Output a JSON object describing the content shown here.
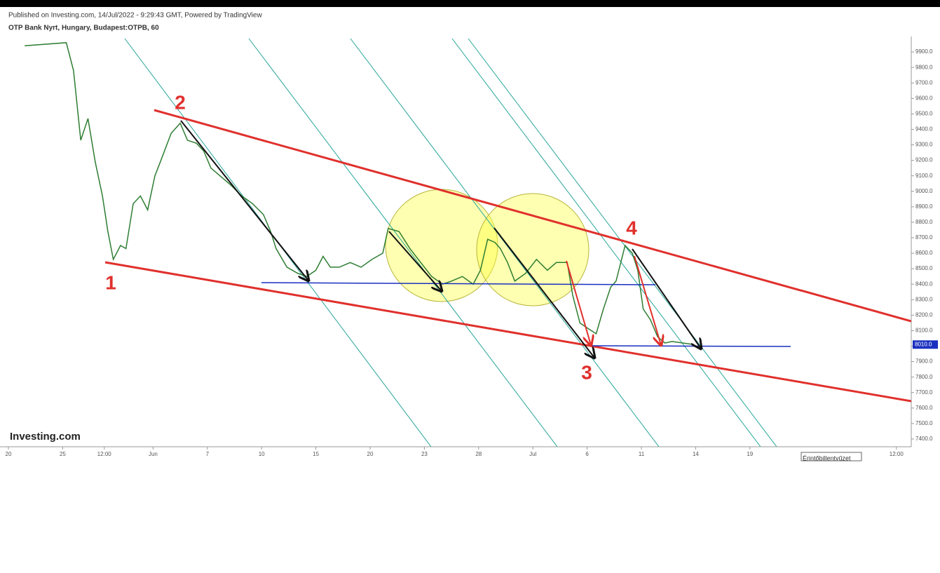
{
  "header": {
    "published": "Published on Investing.com, 14/Jul/2022 - 9:29:43 GMT, Powered by TradingView",
    "symbol": "OTP Bank Nyrt, Hungary, Budapest:OTPB, 60"
  },
  "logo": "Investing.com",
  "tooltip": "Érintőbillentyűzet",
  "annotations": [
    "1",
    "2",
    "3",
    "4"
  ],
  "chart_data": {
    "type": "line",
    "color": "#2e7d32",
    "series": [
      {
        "name": "OTPB",
        "color": "#2e7d32",
        "x": [
          0.9,
          3.2,
          3.6,
          4.0,
          4.4,
          4.8,
          5.2,
          5.5,
          5.8,
          6.2,
          6.5,
          6.9,
          7.3,
          7.7,
          8.1,
          8.4,
          9.0,
          9.5,
          9.9,
          10.4,
          10.8,
          11.2,
          11.7,
          12.3,
          12.9,
          13.5,
          14.1,
          14.5,
          14.8,
          15.4,
          16.0,
          16.5,
          17.0,
          17.4,
          17.8,
          18.3,
          18.9,
          19.5,
          20.1,
          20.7,
          21.0,
          21.6,
          22.2,
          22.8,
          23.4,
          24.0,
          24.5,
          25.1,
          25.7,
          26.1,
          26.5,
          26.9,
          27.2,
          27.6,
          28.0,
          28.6,
          29.2,
          29.8,
          30.3,
          30.9,
          31.2,
          31.6,
          32.1,
          32.5,
          32.9,
          33.3,
          33.6,
          34.1,
          34.5,
          34.8,
          35.1,
          35.5,
          35.9,
          36.3,
          36.7,
          37.3,
          37.9
        ],
        "values": [
          9940,
          9960,
          9780,
          9330,
          9470,
          9190,
          8970,
          8740,
          8560,
          8650,
          8630,
          8920,
          8970,
          8880,
          9100,
          9190,
          9375,
          9440,
          9330,
          9310,
          9260,
          9150,
          9100,
          9040,
          8970,
          8920,
          8850,
          8740,
          8630,
          8510,
          8470,
          8450,
          8490,
          8580,
          8510,
          8510,
          8540,
          8510,
          8560,
          8600,
          8760,
          8740,
          8630,
          8540,
          8450,
          8400,
          8420,
          8450,
          8400,
          8490,
          8690,
          8670,
          8630,
          8540,
          8420,
          8470,
          8560,
          8490,
          8540,
          8540,
          8330,
          8150,
          8110,
          8080,
          8240,
          8380,
          8420,
          8650,
          8600,
          8490,
          8240,
          8170,
          8060,
          8020,
          8030,
          8020,
          8010
        ]
      }
    ],
    "last_price": {
      "value": 8010,
      "label": "8010.0"
    },
    "xlim": [
      0,
      50
    ],
    "ylim": [
      7350,
      10000
    ],
    "xticks": [
      {
        "value": 0,
        "label": "20"
      },
      {
        "value": 3,
        "label": "25"
      },
      {
        "value": 5.3,
        "label": "12:00"
      },
      {
        "value": 8,
        "label": "Jun"
      },
      {
        "value": 11,
        "label": "7"
      },
      {
        "value": 14,
        "label": "10"
      },
      {
        "value": 17,
        "label": "15"
      },
      {
        "value": 20,
        "label": "20"
      },
      {
        "value": 23,
        "label": "23"
      },
      {
        "value": 26,
        "label": "28"
      },
      {
        "value": 29,
        "label": "Jul"
      },
      {
        "value": 32,
        "label": "6"
      },
      {
        "value": 35,
        "label": "11"
      },
      {
        "value": 38,
        "label": "14"
      },
      {
        "value": 41,
        "label": "19"
      },
      {
        "value": 49.1,
        "label": "12:00"
      }
    ],
    "yticks": [
      {
        "value": 7400,
        "label": "7400.0"
      },
      {
        "value": 7500,
        "label": "7500.0"
      },
      {
        "value": 7600,
        "label": "7600.0"
      },
      {
        "value": 7700,
        "label": "7700.0"
      },
      {
        "value": 7800,
        "label": "7800.0"
      },
      {
        "value": 7900,
        "label": "7900.0"
      },
      {
        "value": 8000,
        "label": "8000.0"
      },
      {
        "value": 8100,
        "label": "8100.0"
      },
      {
        "value": 8200,
        "label": "8200.0"
      },
      {
        "value": 8300,
        "label": "8300.0"
      },
      {
        "value": 8400,
        "label": "8400.0"
      },
      {
        "value": 8500,
        "label": "8500.0"
      },
      {
        "value": 8600,
        "label": "8600.0"
      },
      {
        "value": 8700,
        "label": "8700.0"
      },
      {
        "value": 8800,
        "label": "8800.0"
      },
      {
        "value": 8900,
        "label": "8900.0"
      },
      {
        "value": 9000,
        "label": "9000.0"
      },
      {
        "value": 9100,
        "label": "9100.0"
      },
      {
        "value": 9200,
        "label": "9200.0"
      },
      {
        "value": 9300,
        "label": "9300.0"
      },
      {
        "value": 9400,
        "label": "9400.0"
      },
      {
        "value": 9500,
        "label": "9500.0"
      },
      {
        "value": 9600,
        "label": "9600.0"
      },
      {
        "value": 9700,
        "label": "9700.0"
      },
      {
        "value": 9800,
        "label": "9800.0"
      },
      {
        "value": 9900,
        "label": "9900.0"
      }
    ]
  }
}
